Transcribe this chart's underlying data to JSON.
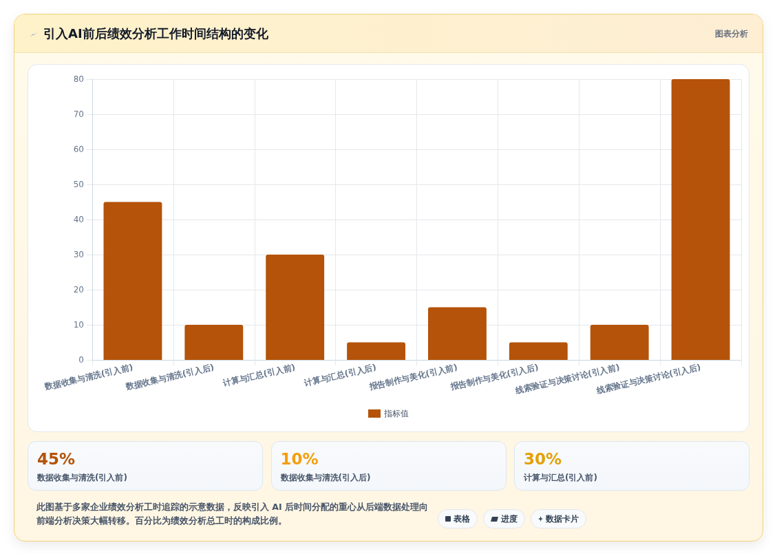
{
  "chart_data": [
    {
      "type": "bar",
      "title": "引入AI前后绩效分析工作时间结构的变化",
      "categories": [
        "数据收集与清洗(引入前)",
        "数据收集与清洗(引入后)",
        "计算与汇总(引入前)",
        "计算与汇总(引入后)",
        "报告制作与美化(引入前)",
        "报告制作与美化(引入后)",
        "线索验证与决策讨论(引入前)",
        "线索验证与决策讨论(引入后)"
      ],
      "series": [
        {
          "name": "指标值",
          "color": "#b45309",
          "values": [
            45,
            10,
            30,
            5,
            15,
            5,
            10,
            80
          ]
        }
      ],
      "ylim": [
        0,
        80
      ],
      "yticks": [
        0,
        10,
        20,
        30,
        40,
        50,
        60,
        70,
        80
      ],
      "grid": true,
      "legend": "bottom",
      "annotations": [
        "图表分析",
        "此图基于多家企业绩效分析工时追踪的示意数据，反映引入 AI 后时间分配的重心从后端数据处理向前端分析决策大幅转移。百分比为绩效分析总工时的构成比例。",
        "表格",
        "进度",
        "数据卡片"
      ]
    },
    {
      "type": "other",
      "annotations": [
        "45%",
        "数据收集与清洗(引入前)",
        "10%",
        "数据收集与清洗(引入后)",
        "30%",
        "计算与汇总(引入前)"
      ]
    }
  ]
}
